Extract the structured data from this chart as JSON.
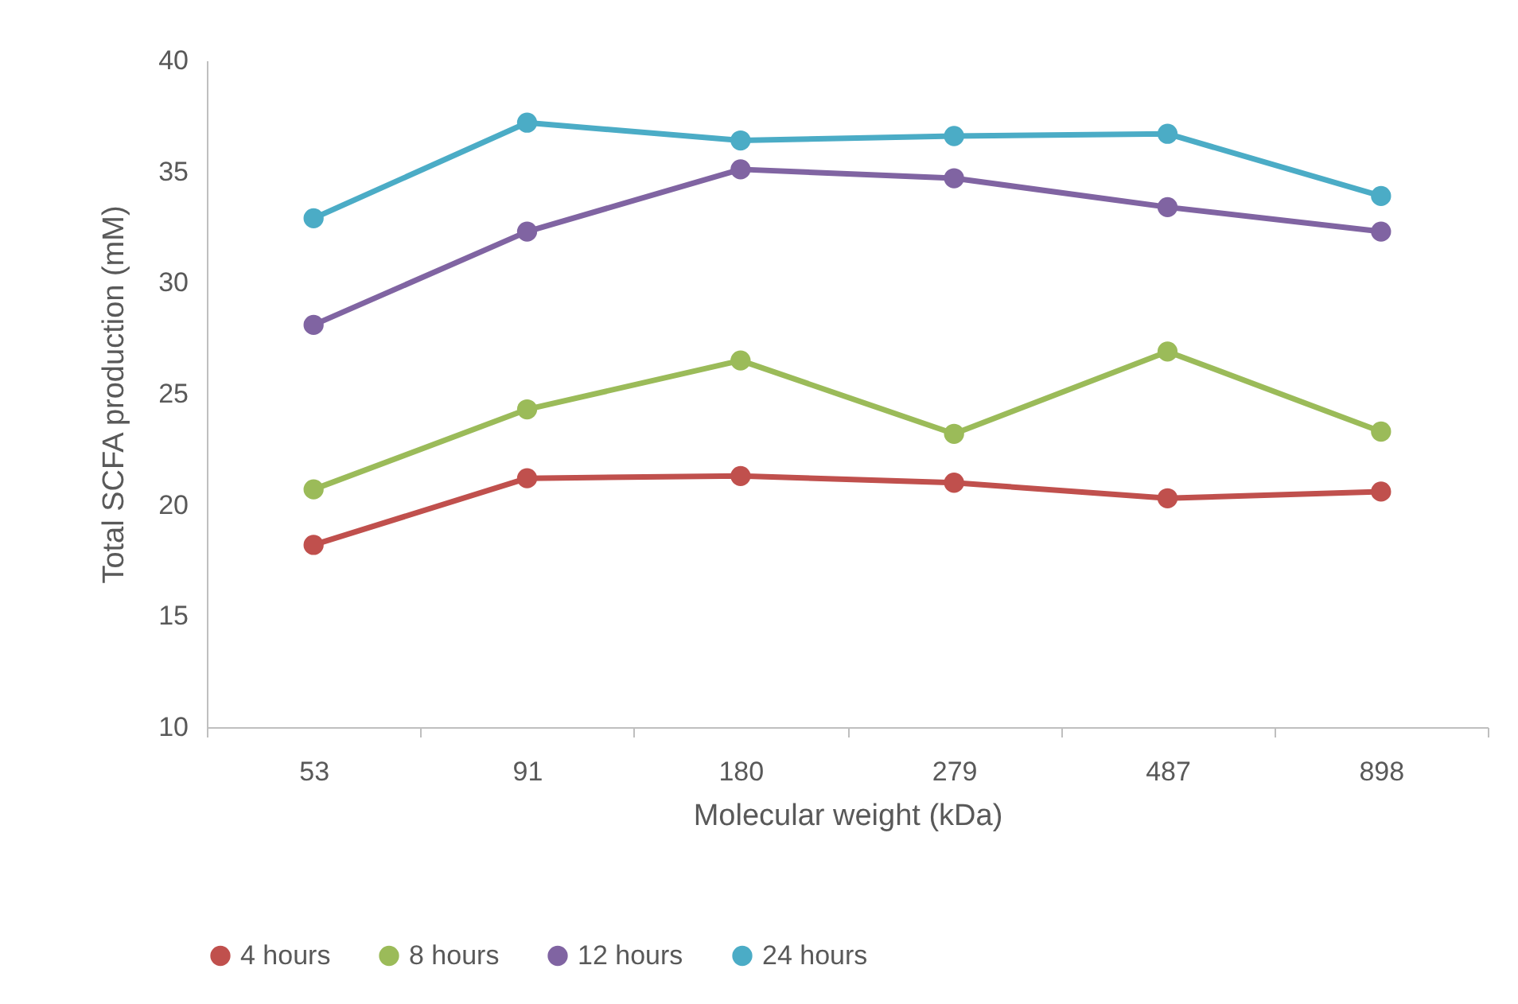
{
  "chart_data": {
    "type": "line",
    "xlabel": "Molecular weight (kDa)",
    "ylabel": "Total SCFA production (mM)",
    "categories": [
      "53",
      "91",
      "180",
      "279",
      "487",
      "898"
    ],
    "ylim": [
      10,
      40
    ],
    "yticks": [
      10,
      15,
      20,
      25,
      30,
      35,
      40
    ],
    "grid": false,
    "legend": "bottom",
    "marker": "circle",
    "series": [
      {
        "name": "4 hours",
        "color": "#c0504d",
        "values": [
          18.2,
          21.2,
          21.3,
          21.0,
          20.3,
          20.6
        ]
      },
      {
        "name": "8 hours",
        "color": "#9bbb59",
        "values": [
          20.7,
          24.3,
          26.5,
          23.2,
          26.9,
          23.3
        ]
      },
      {
        "name": "12 hours",
        "color": "#8064a2",
        "values": [
          28.1,
          32.3,
          35.1,
          34.7,
          33.4,
          32.3
        ]
      },
      {
        "name": "24 hours",
        "color": "#4bacc6",
        "values": [
          32.9,
          37.2,
          36.4,
          36.6,
          36.7,
          33.9
        ]
      }
    ]
  }
}
